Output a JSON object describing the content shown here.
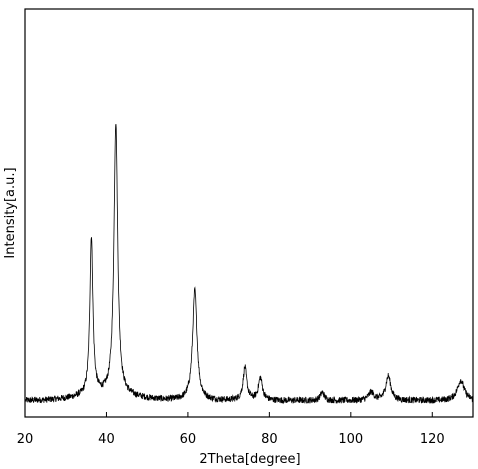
{
  "chart_data": {
    "type": "line",
    "title": "",
    "xlabel": "2Theta[degree]",
    "ylabel": "Intensity[a.u.]",
    "xlim": [
      20,
      130
    ],
    "ylim": [
      0,
      1
    ],
    "x_ticks": [
      20,
      40,
      60,
      80,
      100,
      120
    ],
    "y_ticks_shown": false,
    "grid": false,
    "legend": "none",
    "line_color": "#000000",
    "baseline": 0.04,
    "noise_amplitude": 0.008,
    "series": [
      {
        "peaks": [
          {
            "x": 36.3,
            "height": 0.39,
            "width": 0.45
          },
          {
            "x": 42.3,
            "height": 0.67,
            "width": 0.55
          },
          {
            "x": 61.7,
            "height": 0.27,
            "width": 0.65
          },
          {
            "x": 74.0,
            "height": 0.08,
            "width": 0.55
          },
          {
            "x": 77.8,
            "height": 0.055,
            "width": 0.6
          },
          {
            "x": 93.0,
            "height": 0.02,
            "width": 0.6
          },
          {
            "x": 105.0,
            "height": 0.02,
            "width": 0.8
          },
          {
            "x": 109.2,
            "height": 0.06,
            "width": 0.75
          },
          {
            "x": 127.0,
            "height": 0.05,
            "width": 1.0
          }
        ]
      }
    ]
  }
}
